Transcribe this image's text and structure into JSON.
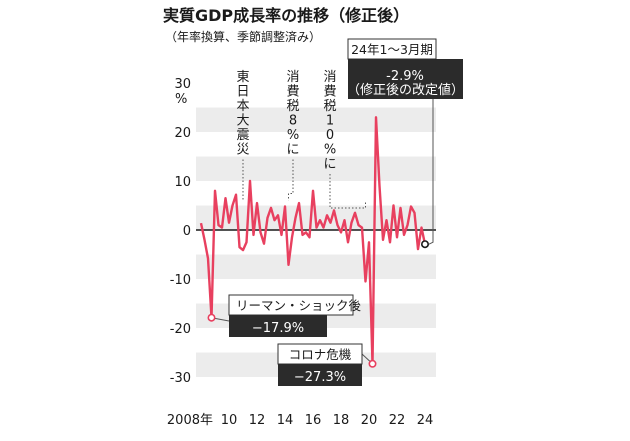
{
  "chart_data": {
    "type": "line",
    "title": "実質GDP成長率の推移（修正後）",
    "subtitle": "（年率換算、季節調整済み）",
    "ylim": [
      -30,
      30
    ],
    "y_ticks": [
      "30",
      "20",
      "10",
      "0",
      "-10",
      "-20",
      "-30"
    ],
    "y_unit": "%",
    "x_tick_labels": [
      "2008年",
      "10",
      "12",
      "14",
      "16",
      "18",
      "20",
      "22",
      "24"
    ],
    "x_tick_years": [
      2008,
      2010,
      2012,
      2014,
      2016,
      2018,
      2020,
      2022,
      2024
    ],
    "grid": "horizontal bands",
    "line_color": "#e8405f",
    "series": [
      {
        "name": "",
        "x": [
          2008.0,
          2008.25,
          2008.5,
          2008.75,
          2009.0,
          2009.25,
          2009.5,
          2009.75,
          2010.0,
          2010.25,
          2010.5,
          2010.75,
          2011.0,
          2011.25,
          2011.5,
          2011.75,
          2012.0,
          2012.25,
          2012.5,
          2012.75,
          2013.0,
          2013.25,
          2013.5,
          2013.75,
          2014.0,
          2014.25,
          2014.5,
          2014.75,
          2015.0,
          2015.25,
          2015.5,
          2015.75,
          2016.0,
          2016.25,
          2016.5,
          2016.75,
          2017.0,
          2017.25,
          2017.5,
          2017.75,
          2018.0,
          2018.25,
          2018.5,
          2018.75,
          2019.0,
          2019.25,
          2019.5,
          2019.75,
          2020.0,
          2020.25,
          2020.5,
          2020.75,
          2021.0,
          2021.25,
          2021.5,
          2021.75,
          2022.0,
          2022.25,
          2022.5,
          2022.75,
          2023.0,
          2023.25,
          2023.5,
          2023.75,
          2024.0
        ],
        "y": [
          1.4,
          -2.0,
          -5.8,
          -17.9,
          8.0,
          1.0,
          0.5,
          6.5,
          1.5,
          5.0,
          7.2,
          -3.5,
          -4.1,
          -2.5,
          10.0,
          -1.0,
          5.5,
          -0.5,
          -2.8,
          2.5,
          4.5,
          2.0,
          3.0,
          -1.0,
          4.8,
          -7.1,
          -1.5,
          2.5,
          5.5,
          -1.0,
          -0.5,
          -1.5,
          8.0,
          0.5,
          2.0,
          0.5,
          3.0,
          1.5,
          4.0,
          1.0,
          -0.5,
          2.0,
          -2.5,
          1.5,
          3.5,
          1.0,
          0.5,
          -10.5,
          -2.5,
          -27.3,
          23.0,
          9.0,
          -2.0,
          2.0,
          -2.5,
          5.0,
          -1.5,
          4.5,
          -1.0,
          1.0,
          4.8,
          3.5,
          -3.9,
          0.5,
          -2.9
        ]
      }
    ],
    "events": [
      {
        "label": "東日本大震災",
        "x": 2011.0
      },
      {
        "label": "消費税8%に",
        "x": 2014.25
      },
      {
        "label": "消費税10%に",
        "x": 2019.75
      }
    ],
    "callouts": [
      {
        "label": "リーマン・ショック後",
        "value": "−17.9%",
        "x": 2008.75,
        "y": -17.9
      },
      {
        "label": "コロナ危機",
        "value": "−27.3%",
        "x": 2020.25,
        "y": -27.3
      },
      {
        "label": "24年1～3月期",
        "value": "-2.9%",
        "note": "（修正後の改定値）",
        "x": 2024.0,
        "y": -2.9
      }
    ]
  }
}
